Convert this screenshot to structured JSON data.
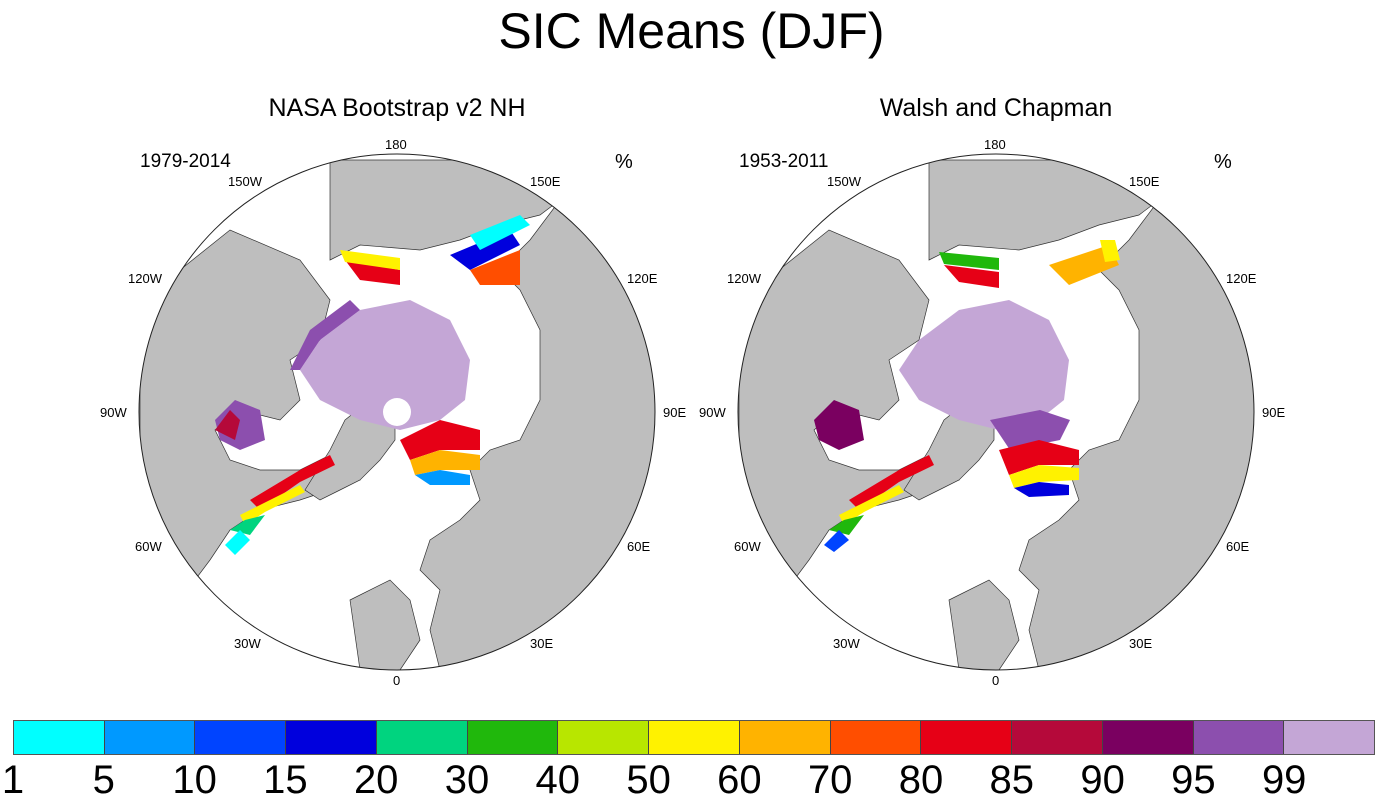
{
  "title": "SIC Means (DJF)",
  "unit": "%",
  "panels": [
    {
      "title": "NASA Bootstrap v2 NH",
      "period": "1979-2014"
    },
    {
      "title": "Walsh and Chapman",
      "period": "1953-2011"
    }
  ],
  "longitude_labels": {
    "l180": "180",
    "l150e": "150E",
    "l120e": "120E",
    "l90e": "90E",
    "l60e": "60E",
    "l30e": "30E",
    "l0": "0",
    "l30w": "30W",
    "l60w": "60W",
    "l90w": "90W",
    "l120w": "120W",
    "l150w": "150W"
  },
  "colorbar": {
    "colors": [
      "#00ffff",
      "#0099ff",
      "#0044ff",
      "#0000dd",
      "#00d47f",
      "#20b80c",
      "#b8e600",
      "#fff200",
      "#ffb300",
      "#ff4e00",
      "#e60016",
      "#b5093a",
      "#7a0060",
      "#8c4fae",
      "#c4a6d6"
    ],
    "labels": [
      "1",
      "5",
      "10",
      "15",
      "20",
      "30",
      "40",
      "50",
      "60",
      "70",
      "80",
      "85",
      "90",
      "95",
      "99"
    ]
  },
  "colors": {
    "land": "#bebebe",
    "ocean": "#ffffff",
    "coast": "#333333"
  }
}
